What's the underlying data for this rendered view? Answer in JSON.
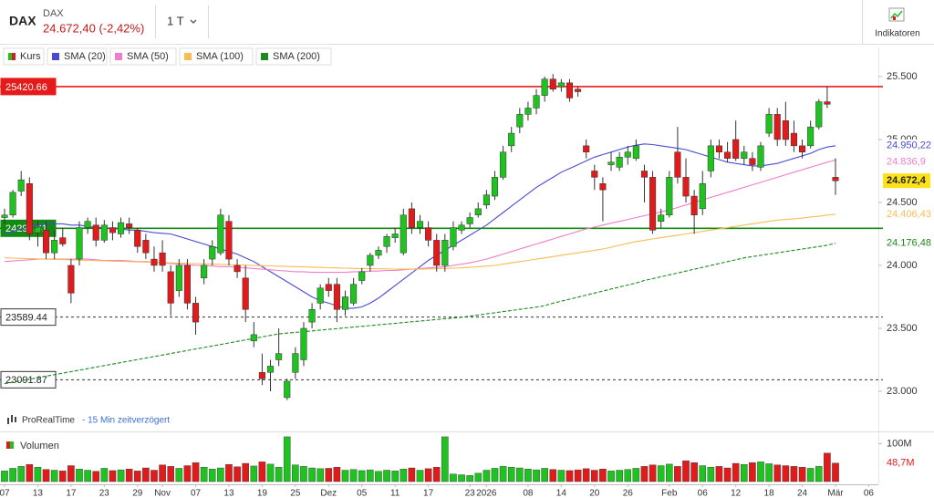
{
  "header": {
    "symbol": "DAX",
    "name": "DAX",
    "price": "24.672,40 (-2,42%)",
    "timeframe": "1 T",
    "indicators": "Indikatoren"
  },
  "footer": {
    "source": "ProRealTime",
    "delay": "- 15 Min zeitverzögert"
  },
  "chart_data": {
    "type": "candlestick",
    "categories": [
      "07",
      null,
      null,
      null,
      "13",
      null,
      null,
      null,
      "17",
      null,
      null,
      null,
      "23",
      null,
      null,
      null,
      "29",
      null,
      null,
      "Nov",
      null,
      null,
      null,
      "07",
      null,
      null,
      null,
      "13",
      null,
      null,
      null,
      "19",
      null,
      null,
      null,
      "25",
      null,
      null,
      null,
      "Dez",
      null,
      null,
      null,
      "05",
      null,
      null,
      null,
      "11",
      null,
      null,
      null,
      "17",
      null,
      null,
      null,
      null,
      "23",
      null,
      "2026",
      null,
      null,
      null,
      null,
      "08",
      null,
      null,
      null,
      "14",
      null,
      null,
      null,
      "20",
      null,
      null,
      null,
      "26",
      null,
      null,
      null,
      null,
      "Feb",
      null,
      null,
      null,
      "06",
      null,
      null,
      null,
      "12",
      null,
      null,
      null,
      "18",
      null,
      null,
      null,
      "24",
      null,
      null,
      null,
      "Mär",
      null,
      null,
      null,
      "06"
    ],
    "candles": {
      "name": "Kurs",
      "up_color": "#1fc31f",
      "down_color": "#e01b1b",
      "last_label": "24.672,4",
      "open": [
        24380,
        24400,
        24590,
        24650,
        24260,
        24280,
        24100,
        24220,
        24000,
        24050,
        24300,
        24320,
        24200,
        24300,
        24250,
        24330,
        24280,
        24200,
        24050,
        24100,
        23950,
        23800,
        24000,
        23700,
        23900,
        24050,
        24100,
        24350,
        24000,
        23900,
        23400,
        23150,
        23150,
        23250,
        22950,
        23150,
        23250,
        23550,
        23700,
        23850,
        23850,
        23650,
        23700,
        23880,
        24000,
        24080,
        24150,
        24220,
        24100,
        24450,
        24300,
        24300,
        24200,
        24000,
        24150,
        24280,
        24330,
        24400,
        24480,
        24550,
        24700,
        24950,
        25100,
        25200,
        25250,
        25350,
        25480,
        25420,
        25450,
        25400,
        24950,
        24750,
        24650,
        24800,
        24780,
        24860,
        24850,
        24750,
        24700,
        24350,
        24400,
        24900,
        24700,
        24550,
        24450,
        24750,
        24950,
        24900,
        25000,
        24850,
        24850,
        24780,
        25050,
        25200,
        25150,
        25050,
        24950,
        24950,
        25100,
        25300,
        24700,
        null,
        null,
        null,
        null
      ],
      "high": [
        24450,
        24600,
        24750,
        24700,
        24350,
        24350,
        24280,
        24300,
        24050,
        24350,
        24380,
        24380,
        24360,
        24350,
        24380,
        24380,
        24300,
        24250,
        24150,
        24200,
        24000,
        24050,
        24050,
        23750,
        24050,
        24200,
        24450,
        24400,
        24050,
        24000,
        23550,
        23300,
        23250,
        23500,
        23100,
        23350,
        23550,
        23700,
        23850,
        23900,
        23900,
        23800,
        23900,
        23980,
        24100,
        24150,
        24250,
        24300,
        24450,
        24500,
        24400,
        24350,
        24250,
        24250,
        24350,
        24350,
        24420,
        24500,
        24600,
        24750,
        24950,
        25100,
        25250,
        25300,
        25400,
        25500,
        25520,
        25480,
        25480,
        25420,
        25000,
        24800,
        24700,
        24900,
        24900,
        24950,
        25000,
        24800,
        24750,
        24450,
        24750,
        25100,
        24850,
        24600,
        24750,
        25000,
        25000,
        24980,
        25150,
        24950,
        24900,
        24980,
        25250,
        25250,
        25300,
        25150,
        25000,
        25150,
        25320,
        25420,
        24850,
        null,
        null,
        null,
        null
      ],
      "low": [
        24330,
        24380,
        24550,
        24200,
        24150,
        24050,
        24050,
        24150,
        23700,
        24000,
        24250,
        24150,
        24180,
        24200,
        24220,
        24250,
        24100,
        24050,
        23950,
        23950,
        23600,
        23750,
        23650,
        23450,
        23850,
        24000,
        24080,
        24000,
        23900,
        23550,
        23350,
        23050,
        23000,
        23200,
        22930,
        23100,
        23200,
        23500,
        23650,
        23750,
        23550,
        23600,
        23680,
        23850,
        23950,
        24050,
        24100,
        24180,
        24080,
        24250,
        24250,
        24150,
        23950,
        23950,
        24120,
        24250,
        24300,
        24380,
        24450,
        24520,
        24680,
        24900,
        25050,
        25150,
        25200,
        25300,
        25380,
        25380,
        25300,
        25340,
        24850,
        24600,
        24350,
        24750,
        24750,
        24800,
        24830,
        24500,
        24250,
        24300,
        24380,
        24650,
        24500,
        24250,
        24400,
        24700,
        24850,
        24820,
        24830,
        24800,
        24750,
        24750,
        25020,
        24950,
        24950,
        24900,
        24850,
        24930,
        25080,
        25250,
        24560,
        null,
        null,
        null,
        null
      ],
      "close": [
        24400,
        24580,
        24680,
        24250,
        24300,
        24100,
        24200,
        24170,
        23780,
        24300,
        24350,
        24200,
        24320,
        24260,
        24340,
        24300,
        24150,
        24100,
        24000,
        24000,
        23700,
        24000,
        23700,
        23550,
        24000,
        24150,
        24400,
        24050,
        23950,
        23650,
        23450,
        23100,
        23200,
        23300,
        23080,
        23300,
        23500,
        23650,
        23820,
        23800,
        23650,
        23750,
        23850,
        23950,
        24080,
        24120,
        24230,
        24250,
        24400,
        24300,
        24350,
        24200,
        24000,
        24200,
        24300,
        24320,
        24380,
        24450,
        24560,
        24700,
        24900,
        25050,
        25200,
        25250,
        25350,
        25480,
        25400,
        25450,
        25330,
        25380,
        24900,
        24700,
        24600,
        24820,
        24860,
        24900,
        24950,
        24700,
        24280,
        24400,
        24700,
        24700,
        24550,
        24400,
        24650,
        24950,
        24900,
        24850,
        24850,
        24900,
        24800,
        24950,
        25200,
        25000,
        25000,
        24950,
        24900,
        25100,
        25300,
        25280,
        24672.4,
        null,
        null,
        null,
        null
      ]
    },
    "series": [
      {
        "name": "SMA (20)",
        "color": "#4a4ad6",
        "dashed": false,
        "last_label": "24.950,22",
        "values": [
          24250,
          24270,
          24290,
          24310,
          24320,
          24330,
          24330,
          24330,
          24320,
          24320,
          24310,
          24300,
          24300,
          24290,
          24290,
          24280,
          24280,
          24270,
          24260,
          24255,
          24250,
          24230,
          24210,
          24190,
          24170,
          24150,
          24130,
          24110,
          24090,
          24060,
          24030,
          23990,
          23950,
          23910,
          23870,
          23830,
          23790,
          23750,
          23720,
          23700,
          23680,
          23660,
          23660,
          23670,
          23700,
          23740,
          23790,
          23840,
          23890,
          23940,
          23990,
          24040,
          24080,
          24120,
          24160,
          24200,
          24240,
          24280,
          24320,
          24370,
          24420,
          24470,
          24520,
          24570,
          24620,
          24660,
          24700,
          24740,
          24770,
          24800,
          24830,
          24860,
          24880,
          24900,
          24920,
          24940,
          24955,
          24965,
          24960,
          24950,
          24940,
          24930,
          24920,
          24900,
          24880,
          24860,
          24840,
          24820,
          24810,
          24800,
          24790,
          24790,
          24800,
          24810,
          24830,
          24850,
          24870,
          24890,
          24920,
          24940,
          24950.22,
          null,
          null,
          null,
          null
        ]
      },
      {
        "name": "SMA (50)",
        "color": "#f07ccb",
        "dashed": false,
        "last_label": "24.836,9",
        "values": [
          24030,
          24035,
          24040,
          24045,
          24050,
          24050,
          24050,
          24050,
          24050,
          24050,
          24050,
          24045,
          24040,
          24040,
          24040,
          24035,
          24030,
          24030,
          24025,
          24020,
          24015,
          24010,
          24005,
          24000,
          24000,
          23995,
          23990,
          23990,
          23985,
          23980,
          23975,
          23970,
          23965,
          23960,
          23955,
          23950,
          23950,
          23945,
          23945,
          23945,
          23945,
          23945,
          23950,
          23950,
          23955,
          23955,
          23960,
          23960,
          23965,
          23970,
          23975,
          23980,
          23985,
          23990,
          24000,
          24010,
          24020,
          24035,
          24050,
          24070,
          24090,
          24110,
          24130,
          24150,
          24170,
          24190,
          24210,
          24230,
          24250,
          24270,
          24290,
          24305,
          24320,
          24335,
          24350,
          24365,
          24380,
          24395,
          24410,
          24425,
          24440,
          24460,
          24480,
          24500,
          24520,
          24540,
          24560,
          24580,
          24600,
          24620,
          24640,
          24660,
          24680,
          24700,
          24720,
          24740,
          24760,
          24780,
          24800,
          24820,
          24836.9,
          null,
          null,
          null,
          null
        ]
      },
      {
        "name": "SMA (100)",
        "color": "#f7bd55",
        "dashed": false,
        "last_label": "24.406,43",
        "values": [
          24060,
          24058,
          24056,
          24054,
          24052,
          24050,
          24048,
          24046,
          24044,
          24042,
          24040,
          24038,
          24036,
          24034,
          24032,
          24030,
          24028,
          24026,
          24024,
          24022,
          24020,
          24018,
          24016,
          24014,
          24012,
          24010,
          24008,
          24006,
          24004,
          24002,
          24000,
          23998,
          23996,
          23994,
          23992,
          23990,
          23988,
          23986,
          23984,
          23982,
          23980,
          23978,
          23976,
          23975,
          23974,
          23973,
          23972,
          23971,
          23970,
          23970,
          23970,
          23972,
          23974,
          23976,
          23978,
          23980,
          23985,
          23990,
          23995,
          24000,
          24010,
          24020,
          24030,
          24040,
          24050,
          24060,
          24070,
          24080,
          24090,
          24100,
          24110,
          24120,
          24130,
          24145,
          24160,
          24175,
          24190,
          24200,
          24210,
          24220,
          24230,
          24240,
          24250,
          24260,
          24270,
          24280,
          24290,
          24300,
          24310,
          24320,
          24330,
          24340,
          24350,
          24360,
          24365,
          24370,
          24375,
          24385,
          24390,
          24400,
          24406.43,
          null,
          null,
          null,
          null
        ]
      },
      {
        "name": "SMA (200)",
        "color": "#1c8a1c",
        "dashed": true,
        "last_label": "24.176,48",
        "values": [
          23060,
          23072,
          23084,
          23096,
          23108,
          23120,
          23132,
          23144,
          23156,
          23168,
          23180,
          23192,
          23204,
          23216,
          23228,
          23240,
          23252,
          23264,
          23276,
          23288,
          23300,
          23312,
          23324,
          23336,
          23348,
          23360,
          23372,
          23384,
          23396,
          23408,
          23420,
          23432,
          23444,
          23456,
          23462,
          23468,
          23474,
          23480,
          23486,
          23492,
          23498,
          23504,
          23510,
          23516,
          23522,
          23528,
          23534,
          23540,
          23546,
          23552,
          23558,
          23564,
          23570,
          23576,
          23582,
          23588,
          23597,
          23606,
          23615,
          23624,
          23633,
          23642,
          23651,
          23660,
          23669,
          23680,
          23700,
          23716,
          23732,
          23748,
          23764,
          23780,
          23796,
          23812,
          23828,
          23844,
          23860,
          23880,
          23895,
          23910,
          23925,
          23940,
          23955,
          23970,
          23985,
          24000,
          24015,
          24030,
          24045,
          24060,
          24070,
          24080,
          24090,
          24100,
          24110,
          24120,
          24130,
          24140,
          24150,
          24160,
          24176.48,
          null,
          null,
          null,
          null
        ]
      }
    ],
    "ylim": [
      22703,
      25601
    ],
    "yticks": [
      {
        "value": 23000,
        "label": "23.000"
      },
      {
        "value": 23500,
        "label": "23.500"
      },
      {
        "value": 24000,
        "label": "24.000"
      },
      {
        "value": 24500,
        "label": "24.500"
      },
      {
        "value": 25000,
        "label": "25.000"
      },
      {
        "value": 25500,
        "label": "25.500"
      }
    ],
    "levels": [
      {
        "value": 25420.66,
        "color": "#e51b1b",
        "dashed": false
      },
      {
        "value": 24294.61,
        "color": "#138a13",
        "dashed": false
      },
      {
        "value": 23589.44,
        "color": "#333333",
        "dashed": true
      },
      {
        "value": 23091.87,
        "color": "#333333",
        "dashed": true
      }
    ],
    "volume": {
      "name": "Volumen",
      "ylim": [
        0,
        125
      ],
      "yticks": [
        {
          "value": 100,
          "label": "100M"
        }
      ],
      "last_label": "48,7M",
      "values": [
        28,
        35,
        40,
        45,
        38,
        32,
        30,
        28,
        42,
        33,
        30,
        27,
        35,
        29,
        31,
        33,
        28,
        36,
        30,
        44,
        40,
        35,
        42,
        50,
        38,
        33,
        36,
        45,
        39,
        48,
        41,
        52,
        46,
        38,
        118,
        44,
        40,
        36,
        34,
        35,
        38,
        30,
        32,
        29,
        31,
        27,
        30,
        28,
        33,
        36,
        30,
        34,
        38,
        118,
        20,
        18,
        16,
        22,
        30,
        35,
        40,
        38,
        36,
        33,
        31,
        35,
        32,
        30,
        29,
        31,
        34,
        30,
        33,
        28,
        30,
        32,
        35,
        40,
        44,
        42,
        46,
        40,
        55,
        50,
        42,
        38,
        40,
        36,
        48,
        45,
        50,
        52,
        47,
        44,
        42,
        40,
        38,
        35,
        40,
        75,
        48.7,
        null,
        null,
        null,
        null
      ]
    }
  }
}
